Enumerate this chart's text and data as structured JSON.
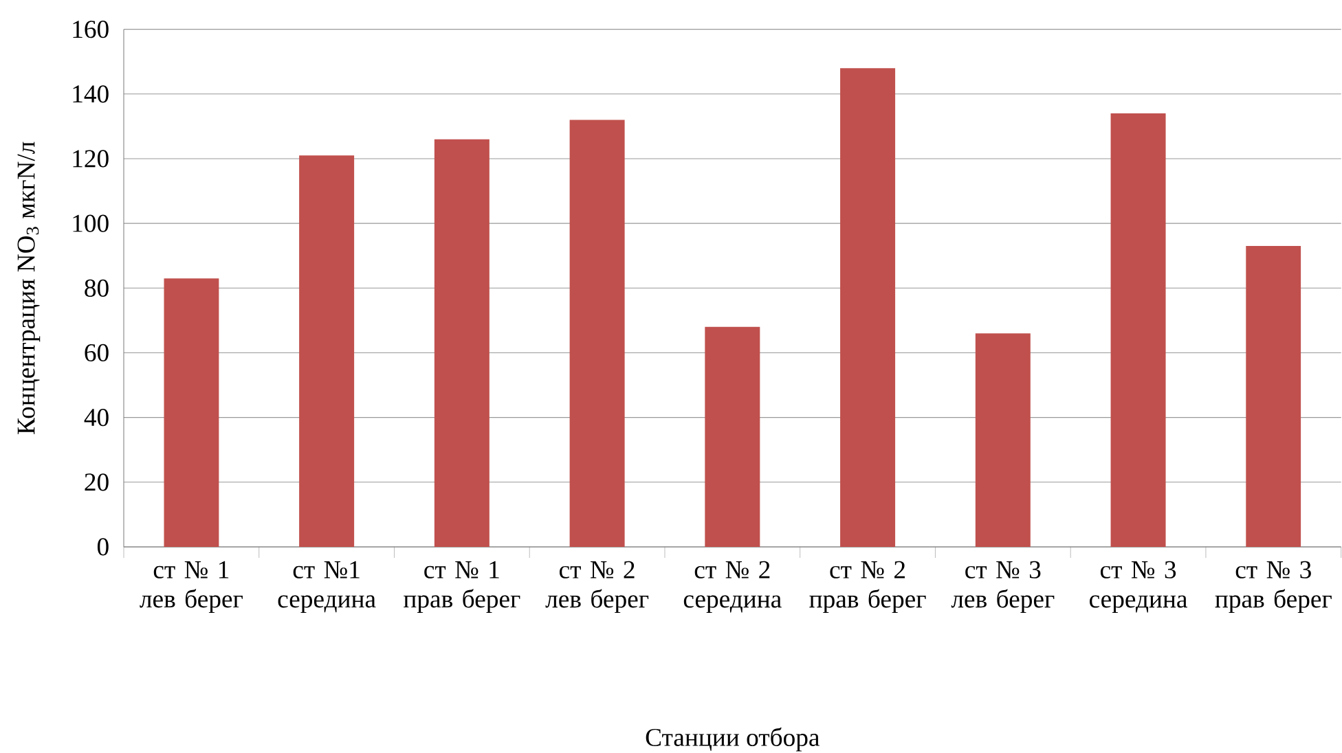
{
  "chart_data": {
    "type": "bar",
    "xlabel": "Станции отбора",
    "ylabel": "Концентрация NO$_{3}$ мкгN/л",
    "categories": [
      "ст № 1 лев берег",
      "ст  №1 середина",
      "ст  № 1 прав берег",
      "ст № 2 лев берег",
      "ст № 2 середина",
      "ст № 2 прав берег",
      "ст № 3 лев берег",
      "ст № 3 середина",
      "ст № 3 прав берег"
    ],
    "values": [
      83,
      121,
      126,
      132,
      68,
      148,
      66,
      134,
      93
    ],
    "color": "#c0504d",
    "ylim": [
      0,
      160
    ],
    "yticks": [
      0,
      20,
      40,
      60,
      80,
      100,
      120,
      140,
      160
    ],
    "grid": "y"
  }
}
